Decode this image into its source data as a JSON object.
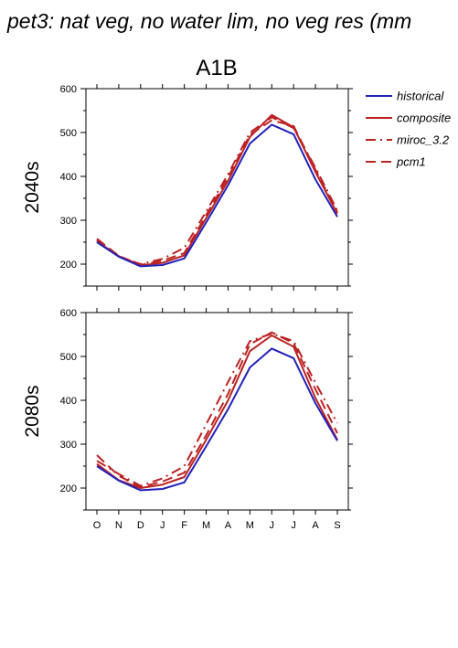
{
  "page": {
    "title": "pet3: nat veg, no water lim, no veg res (mm"
  },
  "chart_data": {
    "type": "line",
    "title": "A1B",
    "categories": [
      "O",
      "N",
      "D",
      "J",
      "F",
      "M",
      "A",
      "M",
      "J",
      "J",
      "A",
      "S"
    ],
    "legend": {
      "placement": "top-right",
      "entries": [
        "historical",
        "composite",
        "miroc_3.2",
        "pcm1"
      ]
    },
    "panels": [
      {
        "ylabel": "2040s",
        "ylim": [
          150,
          600
        ],
        "yticks": [
          200,
          300,
          400,
          500,
          600
        ],
        "ytick_labels": [
          "200",
          "300",
          "400",
          "500",
          "600"
        ],
        "show_xticklabels": false,
        "series": [
          {
            "name": "historical",
            "color": "#2222bb",
            "dash": "solid",
            "values": [
              250,
              217,
              195,
              198,
              213,
              295,
              380,
              475,
              518,
              496,
              393,
              308
            ]
          },
          {
            "name": "composite",
            "color": "#bb2222",
            "dash": "solid",
            "values": [
              252,
              218,
              197,
              203,
              220,
              305,
              390,
              490,
              540,
              512,
              410,
              315
            ]
          },
          {
            "name": "miroc_3.2",
            "color": "#bb2222",
            "dash": "dashdot",
            "values": [
              255,
              218,
              200,
              212,
              237,
              320,
              405,
              500,
              535,
              510,
              420,
              322
            ]
          },
          {
            "name": "pcm1",
            "color": "#bb2222",
            "dash": "dash",
            "values": [
              258,
              219,
              198,
              208,
              225,
              312,
              398,
              495,
              528,
              515,
              415,
              318
            ]
          }
        ]
      },
      {
        "ylabel": "2080s",
        "ylim": [
          150,
          600
        ],
        "yticks": [
          200,
          300,
          400,
          500,
          600
        ],
        "ytick_labels": [
          "200",
          "300",
          "400",
          "500",
          "600"
        ],
        "show_xticklabels": true,
        "series": [
          {
            "name": "historical",
            "color": "#2222bb",
            "dash": "solid",
            "values": [
              250,
              217,
              195,
              198,
              213,
              295,
              380,
              475,
              518,
              496,
              393,
              308
            ]
          },
          {
            "name": "composite",
            "color": "#bb2222",
            "dash": "solid",
            "values": [
              255,
              218,
              200,
              208,
              225,
              310,
              400,
              512,
              548,
              522,
              405,
              310
            ]
          },
          {
            "name": "miroc_3.2",
            "color": "#bb2222",
            "dash": "dashdot",
            "values": [
              262,
              232,
              205,
              222,
              250,
              345,
              442,
              535,
              552,
              535,
              440,
              348
            ]
          },
          {
            "name": "pcm1",
            "color": "#bb2222",
            "dash": "dash",
            "values": [
              275,
              228,
              202,
              215,
              235,
              320,
              415,
              528,
              555,
              530,
              425,
              325
            ]
          }
        ]
      }
    ]
  }
}
